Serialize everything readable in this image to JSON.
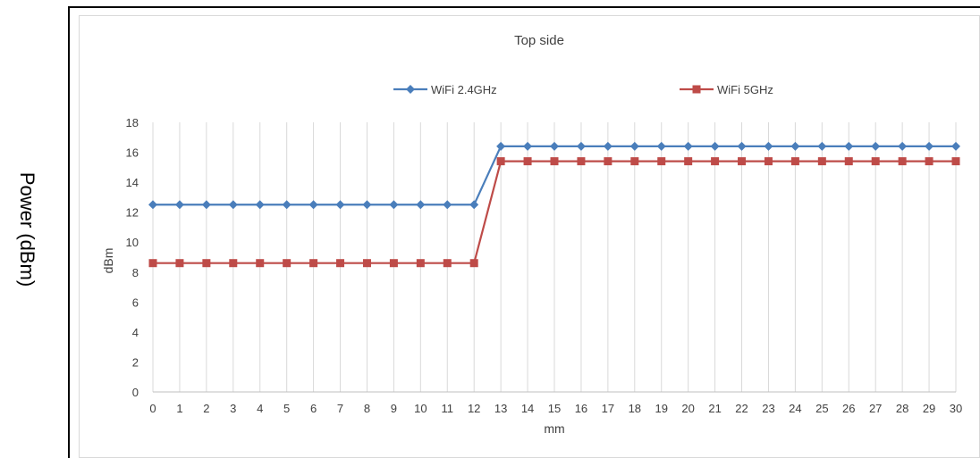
{
  "outer_axis_label": "Power (dBm)",
  "chart_data": {
    "type": "line",
    "title": "Top side",
    "xlabel": "mm",
    "ylabel": "dBm",
    "ylim": [
      0,
      18
    ],
    "yticks": [
      0,
      2,
      4,
      6,
      8,
      10,
      12,
      14,
      16,
      18
    ],
    "grid": "vertical",
    "legend_position": "top",
    "x": [
      0,
      1,
      2,
      3,
      4,
      5,
      6,
      7,
      8,
      9,
      10,
      11,
      12,
      13,
      14,
      15,
      16,
      17,
      18,
      19,
      20,
      21,
      22,
      23,
      24,
      25,
      26,
      27,
      28,
      29,
      30
    ],
    "series": [
      {
        "name": "WiFi 2.4GHz",
        "color": "#4a7ebb",
        "marker": "diamond",
        "values": [
          12.5,
          12.5,
          12.5,
          12.5,
          12.5,
          12.5,
          12.5,
          12.5,
          12.5,
          12.5,
          12.5,
          12.5,
          12.5,
          16.4,
          16.4,
          16.4,
          16.4,
          16.4,
          16.4,
          16.4,
          16.4,
          16.4,
          16.4,
          16.4,
          16.4,
          16.4,
          16.4,
          16.4,
          16.4,
          16.4,
          16.4
        ]
      },
      {
        "name": "WiFi 5GHz",
        "color": "#be4b48",
        "marker": "square",
        "values": [
          8.6,
          8.6,
          8.6,
          8.6,
          8.6,
          8.6,
          8.6,
          8.6,
          8.6,
          8.6,
          8.6,
          8.6,
          8.6,
          15.4,
          15.4,
          15.4,
          15.4,
          15.4,
          15.4,
          15.4,
          15.4,
          15.4,
          15.4,
          15.4,
          15.4,
          15.4,
          15.4,
          15.4,
          15.4,
          15.4,
          15.4
        ]
      }
    ]
  }
}
